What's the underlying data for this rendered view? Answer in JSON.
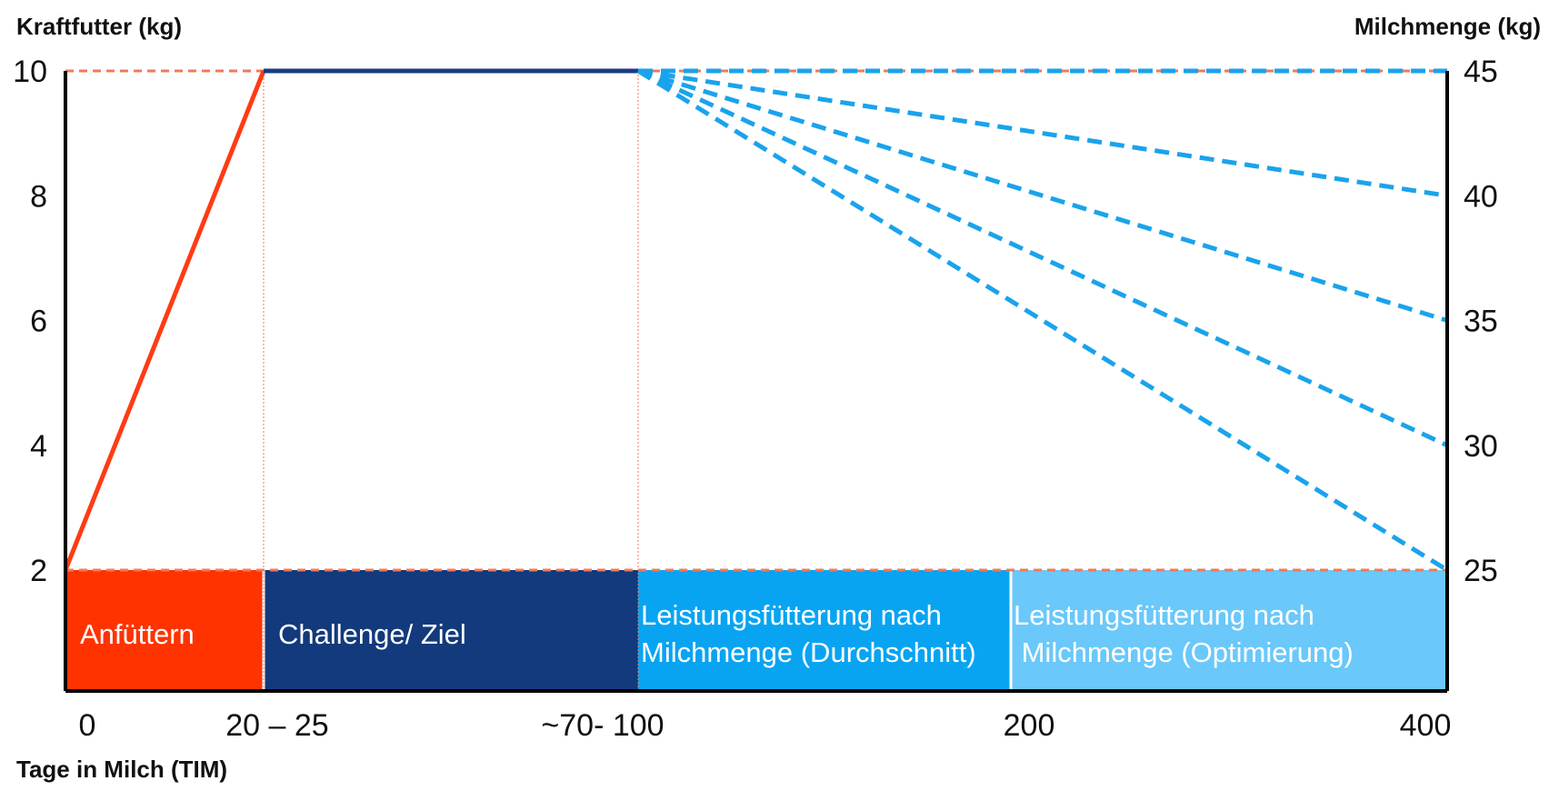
{
  "chart_data": {
    "type": "line",
    "left_axis_title": "Kraftfutter (kg)",
    "right_axis_title": "Milchmenge (kg)",
    "x_axis_title": "Tage in Milch (TIM)",
    "left_ticks": [
      "10",
      "8",
      "6",
      "4",
      "2"
    ],
    "right_ticks": [
      "45",
      "40",
      "35",
      "30",
      "25"
    ],
    "x_ticks": [
      "0",
      "20 – 25",
      "~70- 100",
      "200",
      "400"
    ],
    "ylim": [
      0,
      10
    ],
    "series": [
      {
        "color": "#ff3b14",
        "style": "solid",
        "points": [
          [
            0,
            2
          ],
          [
            22.5,
            10
          ]
        ]
      },
      {
        "color": "#1b3c80",
        "style": "solid",
        "points": [
          [
            22.5,
            10
          ],
          [
            85,
            10
          ]
        ]
      },
      {
        "color": "#1aa3ec",
        "style": "dashed",
        "points": [
          [
            85,
            10
          ],
          [
            400,
            10
          ]
        ]
      },
      {
        "color": "#1aa3ec",
        "style": "dashed",
        "points": [
          [
            85,
            10
          ],
          [
            400,
            8
          ]
        ]
      },
      {
        "color": "#1aa3ec",
        "style": "dashed",
        "points": [
          [
            85,
            10
          ],
          [
            400,
            6
          ]
        ]
      },
      {
        "color": "#1aa3ec",
        "style": "dashed",
        "points": [
          [
            85,
            10
          ],
          [
            400,
            4
          ]
        ]
      },
      {
        "color": "#1aa3ec",
        "style": "dashed",
        "points": [
          [
            85,
            10
          ],
          [
            400,
            2
          ]
        ]
      }
    ],
    "reference_lines": [
      {
        "axis": "y",
        "value": 10,
        "color": "#f07a5a"
      },
      {
        "axis": "y",
        "value": 2,
        "color": "#f07a5a"
      },
      {
        "axis": "x",
        "value": 22.5,
        "color": "#f07a5a"
      },
      {
        "axis": "x",
        "value": 85,
        "color": "#f07a5a"
      }
    ],
    "phases": [
      {
        "lines": [
          "Anfüttern"
        ],
        "color": "#ff3300",
        "start": 0,
        "end": 22.5
      },
      {
        "lines": [
          "Challenge/ Ziel"
        ],
        "color": "#123a7c",
        "start": 22.5,
        "end": 85
      },
      {
        "lines": [
          "Leistungsfütterung nach",
          "Milchmenge (Durchschnitt)"
        ],
        "color": "#08a4f2",
        "start": 85,
        "end": 200
      },
      {
        "lines": [
          "Leistungsfütterung nach",
          " Milchmenge (Optimierung)"
        ],
        "color": "#6ac8fa",
        "start": 200,
        "end": 400
      }
    ]
  }
}
